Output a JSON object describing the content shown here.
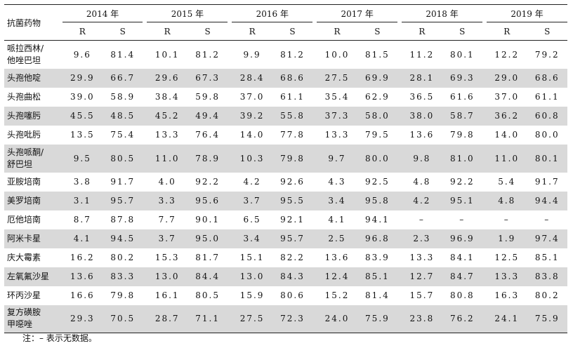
{
  "header": {
    "drug_label": "抗菌药物",
    "years": [
      "2014 年",
      "2015 年",
      "2016 年",
      "2017 年",
      "2018 年",
      "2019 年"
    ],
    "sub_r": "R",
    "sub_s": "S"
  },
  "rows": [
    {
      "drug": "哌拉西林/\n他唑巴坦",
      "v": [
        "9.6",
        "81.4",
        "10.1",
        "81.2",
        "9.9",
        "81.2",
        "10.0",
        "81.5",
        "11.2",
        "80.1",
        "12.2",
        "79.2"
      ]
    },
    {
      "drug": "头孢他啶",
      "v": [
        "29.9",
        "66.7",
        "29.6",
        "67.3",
        "28.4",
        "68.6",
        "27.5",
        "69.9",
        "28.1",
        "69.3",
        "29.0",
        "68.6"
      ]
    },
    {
      "drug": "头孢曲松",
      "v": [
        "39.0",
        "58.9",
        "38.4",
        "59.8",
        "37.0",
        "61.1",
        "35.4",
        "62.9",
        "36.5",
        "61.6",
        "37.0",
        "61.1"
      ]
    },
    {
      "drug": "头孢噻肟",
      "v": [
        "45.5",
        "48.5",
        "45.2",
        "49.4",
        "39.2",
        "55.8",
        "37.3",
        "58.0",
        "38.0",
        "58.7",
        "36.2",
        "60.8"
      ]
    },
    {
      "drug": "头孢吡肟",
      "v": [
        "13.5",
        "75.4",
        "13.3",
        "76.4",
        "14.0",
        "77.8",
        "13.3",
        "79.5",
        "13.6",
        "79.8",
        "14.0",
        "80.0"
      ]
    },
    {
      "drug": "头孢哌酮/\n舒巴坦",
      "v": [
        "9.5",
        "80.5",
        "11.0",
        "78.9",
        "10.3",
        "79.8",
        "9.7",
        "80.0",
        "9.8",
        "81.0",
        "11.0",
        "80.1"
      ]
    },
    {
      "drug": "亚胺培南",
      "v": [
        "3.8",
        "91.7",
        "4.0",
        "92.2",
        "4.2",
        "92.6",
        "4.3",
        "92.5",
        "4.8",
        "92.2",
        "5.4",
        "91.7"
      ]
    },
    {
      "drug": "美罗培南",
      "v": [
        "3.1",
        "95.7",
        "3.3",
        "95.6",
        "3.7",
        "95.5",
        "3.4",
        "95.8",
        "4.2",
        "95.1",
        "4.8",
        "94.4"
      ]
    },
    {
      "drug": "厄他培南",
      "v": [
        "8.7",
        "87.8",
        "7.7",
        "90.1",
        "6.5",
        "92.1",
        "4.1",
        "94.1",
        "–",
        "–",
        "–",
        "–"
      ]
    },
    {
      "drug": "阿米卡星",
      "v": [
        "4.1",
        "94.5",
        "3.7",
        "95.0",
        "3.4",
        "95.7",
        "2.5",
        "96.8",
        "2.3",
        "96.9",
        "1.9",
        "97.4"
      ]
    },
    {
      "drug": "庆大霉素",
      "v": [
        "16.2",
        "80.2",
        "15.3",
        "81.7",
        "15.1",
        "82.2",
        "13.6",
        "83.9",
        "13.3",
        "84.1",
        "12.5",
        "85.1"
      ]
    },
    {
      "drug": "左氧氟沙星",
      "v": [
        "13.6",
        "83.3",
        "13.0",
        "84.4",
        "13.0",
        "84.3",
        "12.4",
        "85.1",
        "12.7",
        "84.7",
        "13.3",
        "83.8"
      ]
    },
    {
      "drug": "环丙沙星",
      "v": [
        "16.6",
        "79.8",
        "16.1",
        "80.5",
        "15.9",
        "80.6",
        "15.2",
        "81.4",
        "15.7",
        "80.8",
        "16.3",
        "80.2"
      ]
    },
    {
      "drug": "复方磺胺\n甲噁唑",
      "v": [
        "29.3",
        "70.5",
        "28.7",
        "71.1",
        "27.5",
        "72.3",
        "24.0",
        "75.9",
        "23.8",
        "76.2",
        "24.1",
        "75.9"
      ]
    }
  ],
  "note": "注：– 表示无数据。"
}
